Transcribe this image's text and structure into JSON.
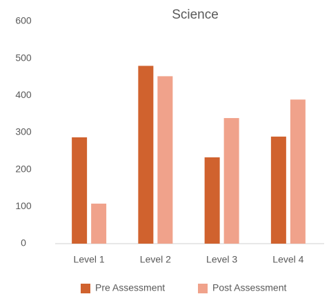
{
  "chart_data": {
    "type": "bar",
    "title": "Science",
    "categories": [
      "Level 1",
      "Level 2",
      "Level 3",
      "Level 4"
    ],
    "series": [
      {
        "name": "Pre Assessment",
        "color": "#d0622e",
        "values": [
          287,
          480,
          233,
          289
        ]
      },
      {
        "name": "Post Assessment",
        "color": "#f0a28b",
        "values": [
          108,
          452,
          339,
          389
        ]
      }
    ],
    "ylim": [
      0,
      600
    ],
    "yticks": [
      0,
      100,
      200,
      300,
      400,
      500,
      600
    ],
    "grid": false,
    "legend": "bottom"
  }
}
